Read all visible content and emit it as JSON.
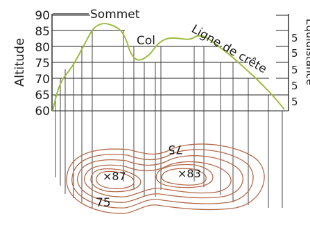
{
  "labels": {
    "y_axis": "Altitude",
    "right_axis": "Équidistance",
    "summit": "Sommet",
    "col": "Col",
    "ridge": "Ligne de crête",
    "spot_height_left": "×87",
    "spot_height_right": "×83",
    "contour_upper": "75",
    "contour_lower": "75"
  },
  "altitude_ticks": [
    "90",
    "85",
    "80",
    "75",
    "70",
    "65",
    "60"
  ],
  "equidistance_values": [
    "5",
    "5",
    "5",
    "5",
    "5",
    "5"
  ],
  "colors": {
    "profile": "#9dbb3f",
    "contours": "#b36a4a",
    "grid": "#222222",
    "text": "#1c1c1c"
  }
}
